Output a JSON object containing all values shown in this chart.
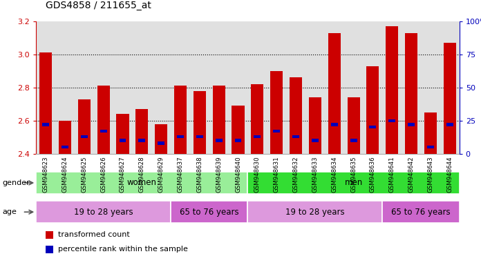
{
  "title": "GDS4858 / 211655_at",
  "samples": [
    "GSM948623",
    "GSM948624",
    "GSM948625",
    "GSM948626",
    "GSM948627",
    "GSM948628",
    "GSM948629",
    "GSM948637",
    "GSM948638",
    "GSM948639",
    "GSM948640",
    "GSM948630",
    "GSM948631",
    "GSM948632",
    "GSM948633",
    "GSM948634",
    "GSM948635",
    "GSM948636",
    "GSM948641",
    "GSM948642",
    "GSM948643",
    "GSM948644"
  ],
  "bar_values": [
    3.01,
    2.6,
    2.73,
    2.81,
    2.64,
    2.67,
    2.58,
    2.81,
    2.78,
    2.81,
    2.69,
    2.82,
    2.9,
    2.86,
    2.74,
    3.13,
    2.74,
    2.93,
    3.17,
    3.13,
    2.65,
    3.07
  ],
  "percentile_values": [
    22,
    5,
    13,
    17,
    10,
    10,
    8,
    13,
    13,
    10,
    10,
    13,
    17,
    13,
    10,
    22,
    10,
    20,
    25,
    22,
    5,
    22
  ],
  "bar_bottom": 2.4,
  "ylim": [
    2.4,
    3.2
  ],
  "yticks": [
    2.4,
    2.6,
    2.8,
    3.0,
    3.2
  ],
  "right_ylim": [
    0,
    100
  ],
  "right_yticks": [
    0,
    25,
    50,
    75,
    100
  ],
  "bar_color": "#cc0000",
  "blue_color": "#0000bb",
  "gender_colors_women": "#99ee99",
  "gender_colors_men": "#33dd33",
  "age_color_young": "#dd99dd",
  "age_color_old": "#cc66cc",
  "gender_groups": [
    {
      "label": "women",
      "start": 0,
      "end": 11
    },
    {
      "label": "men",
      "start": 11,
      "end": 22
    }
  ],
  "age_groups": [
    {
      "label": "19 to 28 years",
      "start": 0,
      "end": 7
    },
    {
      "label": "65 to 76 years",
      "start": 7,
      "end": 11
    },
    {
      "label": "19 to 28 years",
      "start": 11,
      "end": 18
    },
    {
      "label": "65 to 76 years",
      "start": 18,
      "end": 22
    }
  ],
  "legend_items": [
    {
      "label": "transformed count",
      "color": "#cc0000"
    },
    {
      "label": "percentile rank within the sample",
      "color": "#0000bb"
    }
  ],
  "left_ylabel_color": "#cc0000",
  "right_ylabel_color": "#0000bb",
  "plot_bg": "#e0e0e0"
}
